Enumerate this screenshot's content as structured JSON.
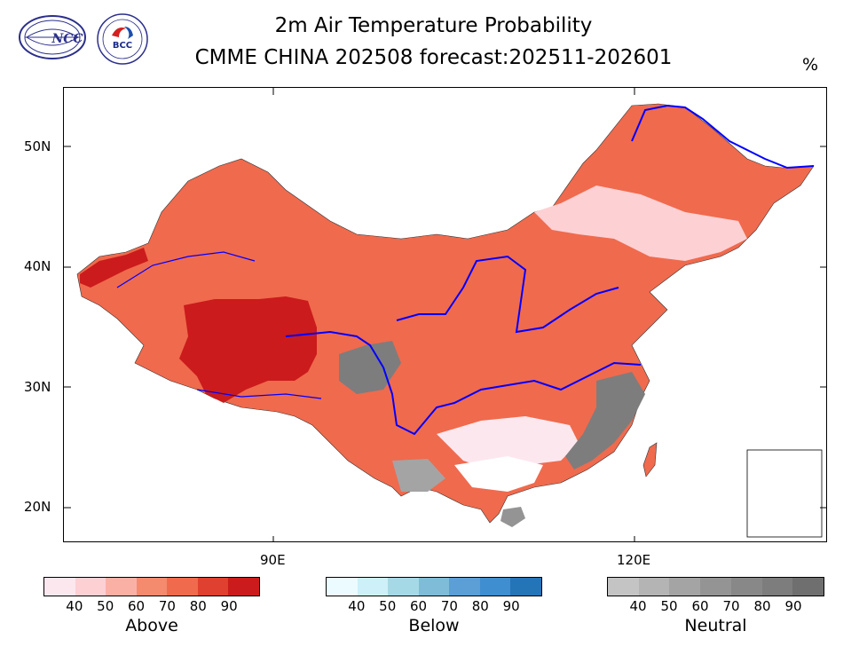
{
  "title_line1": "2m Air Temperature Probability",
  "title_line2": "CMME CHINA 202508 forecast:202511-202601",
  "unit": "%",
  "logos": {
    "ncc": "NCC",
    "bcc": "BCC"
  },
  "axes": {
    "lat_labels": [
      "50N",
      "40N",
      "30N",
      "20N"
    ],
    "lon_labels": [
      "90E",
      "120E"
    ]
  },
  "legends": [
    {
      "name": "Above",
      "ticks": [
        "40",
        "50",
        "60",
        "70",
        "80",
        "90"
      ],
      "colors": [
        "#fde7ef",
        "#fdd0d4",
        "#fbb0a6",
        "#f48a6e",
        "#f06a4d",
        "#e0402f",
        "#cb1b1c"
      ]
    },
    {
      "name": "Below",
      "ticks": [
        "40",
        "50",
        "60",
        "70",
        "80",
        "90"
      ],
      "colors": [
        "#ecfbff",
        "#cdf0f9",
        "#a6d9e6",
        "#7ebcd8",
        "#5b9fd6",
        "#3f8ecf",
        "#2474b8"
      ]
    },
    {
      "name": "Neutral",
      "ticks": [
        "40",
        "50",
        "60",
        "70",
        "80",
        "90"
      ],
      "colors": [
        "#c4c4c4",
        "#b4b4b4",
        "#a4a4a4",
        "#949494",
        "#888888",
        "#7d7d7d",
        "#6f6f6f"
      ]
    }
  ]
}
